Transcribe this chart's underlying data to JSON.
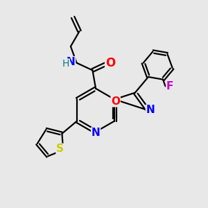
{
  "bg_color": "#e8e8e8",
  "bond_color": "#000000",
  "atom_colors": {
    "N": "#0000ff",
    "O": "#ff0000",
    "S": "#cccc00",
    "F": "#cc00cc",
    "H": "#008080",
    "C": "#000000"
  },
  "font_size": 10,
  "lw": 1.6
}
